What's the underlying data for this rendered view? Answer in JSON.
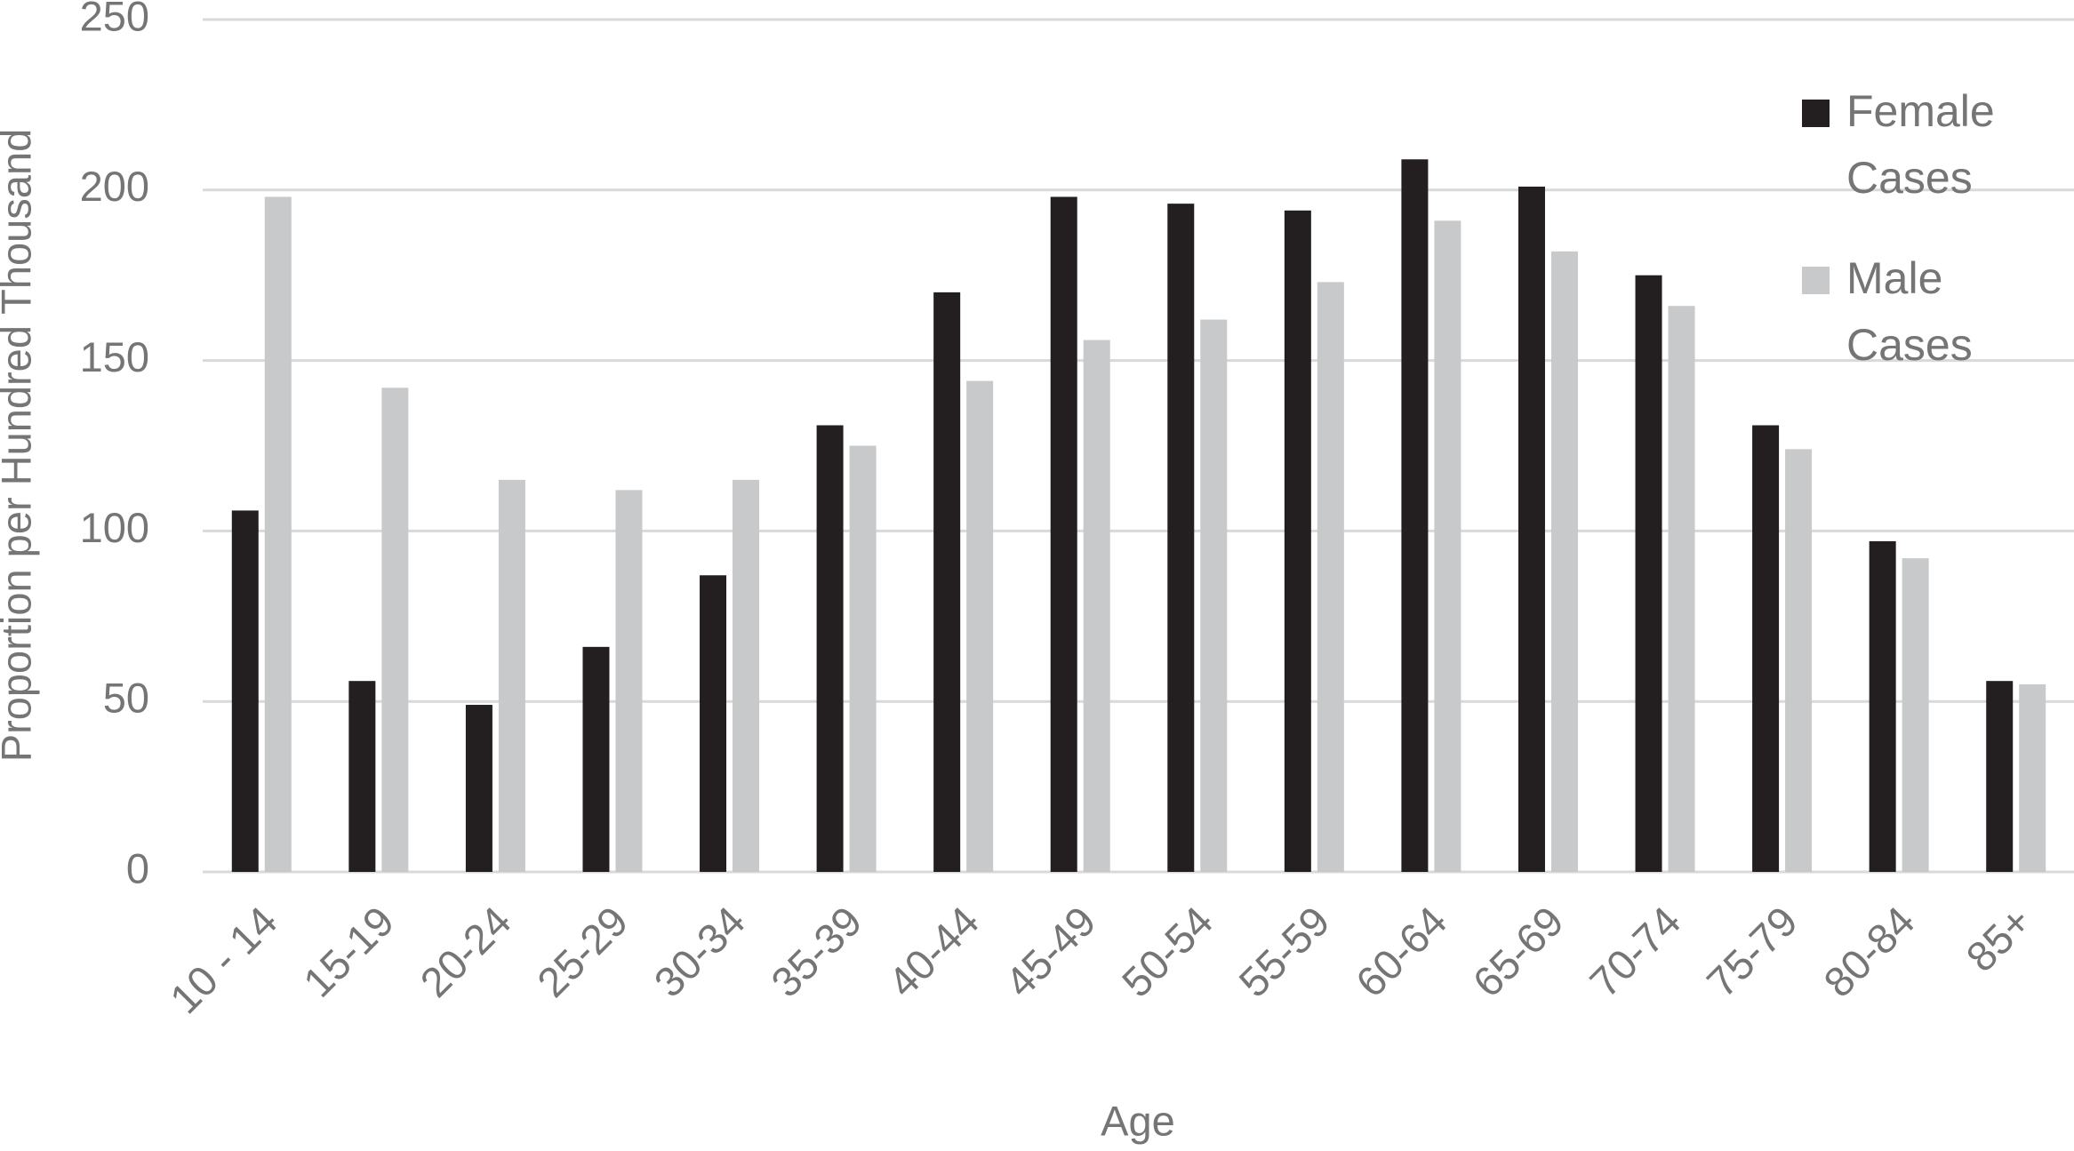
{
  "chart_data": {
    "type": "bar",
    "x_label": "Age",
    "y_label": "Proportion per Hundred Thousand",
    "categories": [
      "10 - 14",
      "15-19",
      "20-24",
      "25-29",
      "30-34",
      "35-39",
      "40-44",
      "45-49",
      "50-54",
      "55-59",
      "60-64",
      "65-69",
      "70-74",
      "75-79",
      "80-84",
      "85+"
    ],
    "series": [
      {
        "name": "Female Cases",
        "color": "#231f20",
        "values": [
          106,
          56,
          49,
          66,
          87,
          131,
          170,
          198,
          196,
          194,
          209,
          201,
          175,
          131,
          97,
          56
        ]
      },
      {
        "name": "Male Cases",
        "color": "#c8c9ca",
        "values": [
          198,
          142,
          115,
          112,
          115,
          125,
          144,
          156,
          162,
          173,
          191,
          182,
          166,
          124,
          92,
          55
        ]
      }
    ],
    "ylim": [
      0,
      250
    ],
    "yticks": [
      0,
      50,
      100,
      150,
      200,
      250
    ],
    "grid": true,
    "legend": "upper right"
  }
}
